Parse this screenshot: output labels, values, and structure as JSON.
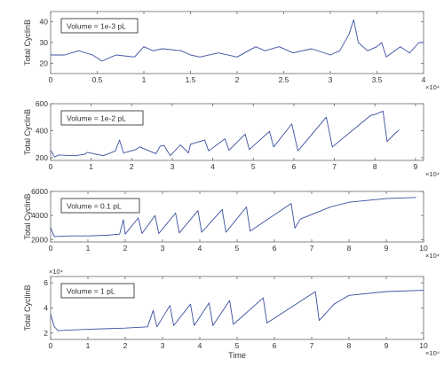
{
  "chart_data": [
    {
      "type": "line",
      "annotation": "Volume = 1e-3 pL",
      "ylabel": "Total CyclinB",
      "xlabel": "",
      "xlim": [
        0,
        4
      ],
      "x_ticks": [
        "0",
        "0.5",
        "1",
        "1.5",
        "2",
        "2.5",
        "3",
        "3.5",
        "4"
      ],
      "x_exponent": "×10⁴",
      "ylim": [
        15,
        45
      ],
      "y_ticks": [
        "20",
        "30",
        "40"
      ],
      "y_exponent": "",
      "color": "#3a4fa0",
      "series": [
        {
          "x": [
            0,
            0.15,
            0.3,
            0.45,
            0.55,
            0.7,
            0.9,
            1.0,
            1.1,
            1.2,
            1.4,
            1.5,
            1.6,
            1.8,
            2.0,
            2.2,
            2.3,
            2.45,
            2.6,
            2.8,
            3.0,
            3.1,
            3.2,
            3.25,
            3.3,
            3.4,
            3.5,
            3.55,
            3.6,
            3.75,
            3.85,
            3.95,
            4.0
          ],
          "y": [
            24,
            24,
            26,
            24,
            21,
            24,
            23,
            28,
            26,
            27,
            26,
            24,
            23,
            25,
            23,
            28,
            26,
            28,
            25,
            27,
            24,
            26,
            34,
            41,
            30,
            26,
            28,
            30,
            23,
            28,
            25,
            30,
            30
          ]
        }
      ]
    },
    {
      "type": "line",
      "annotation": "Volume = 1e-2 pL",
      "ylabel": "Total CyclinB",
      "xlabel": "",
      "xlim": [
        0,
        9.2
      ],
      "x_ticks": [
        "0",
        "1",
        "2",
        "3",
        "4",
        "5",
        "6",
        "7",
        "8",
        "9"
      ],
      "x_exponent": "×10⁴",
      "ylim": [
        180,
        600
      ],
      "y_ticks": [
        "200",
        "400",
        "600"
      ],
      "y_exponent": "",
      "color": "#3a4fa0",
      "series": [
        {
          "x": [
            0,
            0.1,
            0.2,
            0.6,
            0.85,
            0.9,
            1.3,
            1.6,
            1.7,
            1.8,
            2.1,
            2.2,
            2.6,
            2.7,
            2.8,
            2.95,
            3.2,
            3.4,
            3.45,
            3.8,
            3.9,
            4.3,
            4.4,
            4.8,
            4.9,
            5.4,
            5.5,
            5.95,
            6.1,
            6.8,
            6.95,
            7.9,
            8.0,
            8.2,
            8.3,
            8.5,
            8.6
          ],
          "y": [
            255,
            205,
            220,
            215,
            225,
            240,
            215,
            250,
            330,
            235,
            260,
            280,
            230,
            285,
            290,
            215,
            295,
            235,
            300,
            330,
            250,
            340,
            255,
            375,
            260,
            395,
            280,
            450,
            250,
            500,
            280,
            515,
            520,
            545,
            320,
            380,
            405
          ]
        }
      ]
    },
    {
      "type": "line",
      "annotation": "Volume = 0.1 pL",
      "ylabel": "Total CyclinB",
      "xlabel": "",
      "xlim": [
        0,
        10
      ],
      "x_ticks": [
        "0",
        "1",
        "2",
        "3",
        "4",
        "5",
        "6",
        "7",
        "8",
        "9",
        "10"
      ],
      "x_exponent": "×10⁴",
      "ylim": [
        1800,
        6000
      ],
      "y_ticks": [
        "2000",
        "4000",
        "6000"
      ],
      "y_exponent": "",
      "color": "#3a4fa0",
      "series": [
        {
          "x": [
            0,
            0.05,
            0.1,
            0.5,
            1.0,
            1.5,
            1.85,
            1.95,
            2.0,
            2.35,
            2.45,
            2.8,
            2.9,
            3.35,
            3.45,
            3.95,
            4.05,
            4.6,
            4.7,
            5.25,
            5.35,
            6.45,
            6.55,
            6.7,
            7.5,
            8.0,
            9.0,
            9.8
          ],
          "y": [
            3000,
            2600,
            2250,
            2300,
            2300,
            2350,
            2450,
            3650,
            2450,
            3800,
            2500,
            4000,
            2500,
            4200,
            2550,
            4400,
            2600,
            4500,
            2600,
            4700,
            2700,
            5000,
            2950,
            3700,
            4700,
            5100,
            5400,
            5500
          ]
        }
      ]
    },
    {
      "type": "line",
      "annotation": "Volume = 1 pL",
      "ylabel": "Total CyclinB",
      "xlabel": "Time",
      "xlim": [
        0,
        10
      ],
      "x_ticks": [
        "0",
        "1",
        "2",
        "3",
        "4",
        "5",
        "6",
        "7",
        "8",
        "9",
        "10"
      ],
      "x_exponent": "×10⁴",
      "ylim": [
        1.5,
        6.5
      ],
      "y_ticks": [
        "2",
        "4",
        "6"
      ],
      "y_exponent": "×10⁴",
      "color": "#3a4fa0",
      "series": [
        {
          "x": [
            0,
            0.1,
            0.2,
            1.0,
            2.0,
            2.6,
            2.75,
            2.85,
            3.2,
            3.3,
            3.75,
            3.85,
            4.25,
            4.35,
            4.8,
            4.9,
            5.7,
            5.8,
            7.1,
            7.2,
            7.6,
            8.0,
            9.0,
            10.0
          ],
          "y": [
            3.5,
            2.5,
            2.2,
            2.3,
            2.4,
            2.5,
            3.8,
            2.5,
            4.2,
            2.6,
            4.3,
            2.6,
            4.4,
            2.6,
            4.6,
            2.7,
            4.8,
            2.8,
            5.3,
            3.0,
            4.3,
            5.0,
            5.3,
            5.4
          ]
        }
      ]
    }
  ]
}
